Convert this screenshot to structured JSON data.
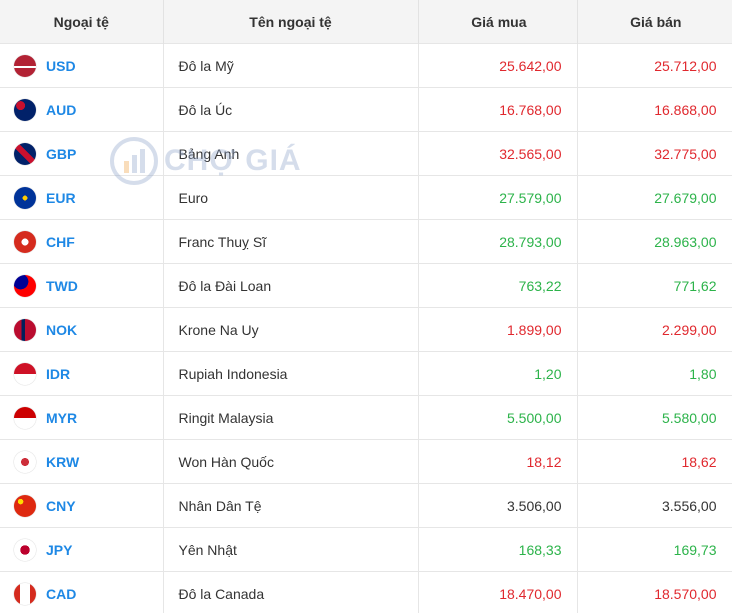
{
  "table": {
    "header": [
      "Ngoại tệ",
      "Tên ngoại tệ",
      "Giá mua",
      "Giá bán"
    ],
    "rows": [
      {
        "code": "USD",
        "name": "Đô la Mỹ",
        "buy": "25.642,00",
        "sell": "25.712,00",
        "color": "#e0282e"
      },
      {
        "code": "AUD",
        "name": "Đô la Úc",
        "buy": "16.768,00",
        "sell": "16.868,00",
        "color": "#e0282e"
      },
      {
        "code": "GBP",
        "name": "Bảng Anh",
        "buy": "32.565,00",
        "sell": "32.775,00",
        "color": "#e0282e"
      },
      {
        "code": "EUR",
        "name": "Euro",
        "buy": "27.579,00",
        "sell": "27.679,00",
        "color": "#2cb34a"
      },
      {
        "code": "CHF",
        "name": "Franc Thuỵ Sĩ",
        "buy": "28.793,00",
        "sell": "28.963,00",
        "color": "#2cb34a"
      },
      {
        "code": "TWD",
        "name": "Đô la Đài Loan",
        "buy": "763,22",
        "sell": "771,62",
        "color": "#2cb34a"
      },
      {
        "code": "NOK",
        "name": "Krone Na Uy",
        "buy": "1.899,00",
        "sell": "2.299,00",
        "color": "#e0282e"
      },
      {
        "code": "IDR",
        "name": "Rupiah Indonesia",
        "buy": "1,20",
        "sell": "1,80",
        "color": "#2cb34a"
      },
      {
        "code": "MYR",
        "name": "Ringit Malaysia",
        "buy": "5.500,00",
        "sell": "5.580,00",
        "color": "#2cb34a"
      },
      {
        "code": "KRW",
        "name": "Won Hàn Quốc",
        "buy": "18,12",
        "sell": "18,62",
        "color": "#e0282e"
      },
      {
        "code": "CNY",
        "name": "Nhân Dân Tệ",
        "buy": "3.506,00",
        "sell": "3.556,00",
        "color": "#333333"
      },
      {
        "code": "JPY",
        "name": "Yên Nhật",
        "buy": "168,33",
        "sell": "169,73",
        "color": "#2cb34a"
      },
      {
        "code": "CAD",
        "name": "Đô la Canada",
        "buy": "18.470,00",
        "sell": "18.570,00",
        "color": "#e0282e"
      }
    ]
  },
  "watermark": "CHỢ GIÁ"
}
